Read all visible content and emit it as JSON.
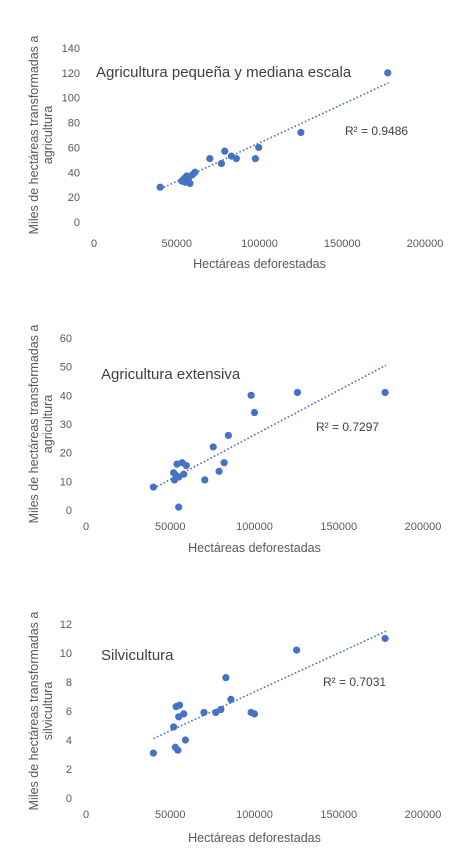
{
  "chart_data": [
    {
      "type": "scatter",
      "title": "Agricultura pequeña y mediana escala",
      "xlabel": "Hectáreas deforestadas",
      "ylabel_lines": [
        "Miles de hectáreas transformadas a",
        "agricultura"
      ],
      "xlim": [
        0,
        200000
      ],
      "ylim": [
        0,
        140
      ],
      "xticks": [
        "0",
        "50000",
        "100000",
        "150000",
        "200000"
      ],
      "yticks": [
        "0",
        "20",
        "40",
        "60",
        "80",
        "100",
        "120",
        "140"
      ],
      "grid": "none",
      "r2_label": "R² = 0.9486",
      "trendline": {
        "x": [
          40000,
          178000
        ],
        "y": [
          26.5,
          112
        ]
      },
      "points": {
        "x": [
          40000,
          53000,
          54500,
          55000,
          56000,
          57000,
          58000,
          59500,
          61000,
          70000,
          77000,
          79000,
          83000,
          86000,
          97500,
          99500,
          125000,
          177500
        ],
        "y": [
          28,
          33,
          35,
          32,
          37,
          34,
          31,
          38,
          40,
          51,
          47,
          57,
          53,
          51,
          51,
          60,
          72,
          120
        ]
      }
    },
    {
      "type": "scatter",
      "title": "Agricultura extensiva",
      "xlabel": "Hectáreas deforestadas",
      "ylabel_lines": [
        "Miles de hectáreas transformadas a",
        "agricultura"
      ],
      "xlim": [
        0,
        200000
      ],
      "ylim": [
        0,
        60
      ],
      "xticks": [
        "0",
        "50000",
        "100000",
        "150000",
        "200000"
      ],
      "yticks": [
        "0",
        "10",
        "20",
        "30",
        "40",
        "50",
        "60"
      ],
      "grid": "none",
      "r2_label": "R² = 0.7297",
      "trendline": {
        "x": [
          40000,
          178000
        ],
        "y": [
          7.5,
          50.5
        ]
      },
      "points": {
        "x": [
          40000,
          52000,
          52500,
          53500,
          54000,
          55000,
          55000,
          57000,
          58000,
          59500,
          70500,
          75500,
          79000,
          82000,
          84500,
          98000,
          100000,
          125500,
          177500
        ],
        "y": [
          8,
          13,
          10.5,
          12,
          16,
          11.5,
          1,
          16.5,
          12.5,
          15.5,
          10.5,
          22,
          13.5,
          16.5,
          26,
          40,
          34,
          41,
          41
        ]
      }
    },
    {
      "type": "scatter",
      "title": "Silvicultura",
      "xlabel": "Hectáreas deforestadas",
      "ylabel_lines": [
        "Miles de hectáreas transformadas a",
        "silvicultura"
      ],
      "xlim": [
        0,
        200000
      ],
      "ylim": [
        0,
        12
      ],
      "xticks": [
        "0",
        "50000",
        "100000",
        "150000",
        "200000"
      ],
      "yticks": [
        "0",
        "2",
        "4",
        "6",
        "8",
        "10",
        "12"
      ],
      "grid": "none",
      "r2_label": "R² = 0.7031",
      "trendline": {
        "x": [
          40000,
          178000
        ],
        "y": [
          4.1,
          11.5
        ]
      },
      "points": {
        "x": [
          40000,
          52000,
          53000,
          53500,
          54500,
          55000,
          55500,
          58000,
          59000,
          70000,
          77000,
          80000,
          83000,
          86000,
          98000,
          100000,
          125000,
          177500
        ],
        "y": [
          3.1,
          4.9,
          3.5,
          6.3,
          3.3,
          5.6,
          6.4,
          5.8,
          4.0,
          5.9,
          5.9,
          6.1,
          8.3,
          6.8,
          5.9,
          5.8,
          10.2,
          11
        ]
      }
    }
  ]
}
